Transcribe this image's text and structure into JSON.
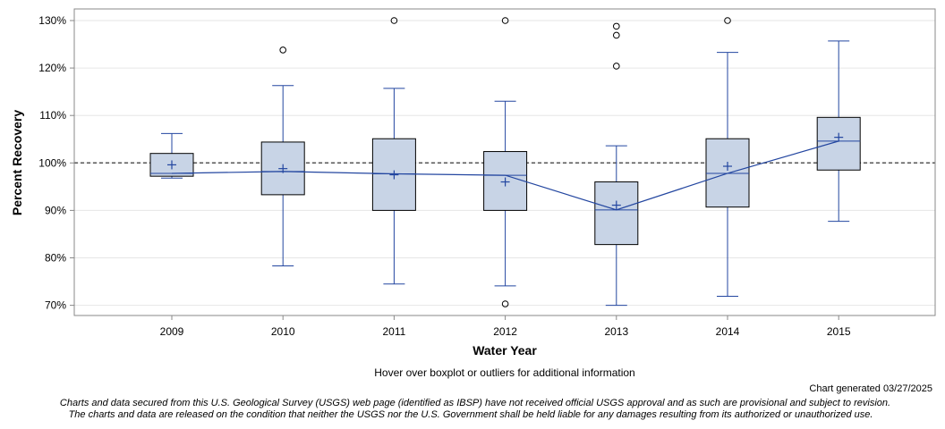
{
  "chart_data": {
    "type": "boxplot",
    "title": "",
    "xlabel": "Water Year",
    "ylabel": "Percent Recovery",
    "ylim": [
      67.5,
      132
    ],
    "ytick_values": [
      70,
      80,
      90,
      100,
      110,
      120,
      130
    ],
    "ytick_labels": [
      "70%",
      "80%",
      "90%",
      "100%",
      "110%",
      "120%",
      "130%"
    ],
    "reference_line": 100,
    "grid": true,
    "categories": [
      "2009",
      "2010",
      "2011",
      "2012",
      "2013",
      "2014",
      "2015"
    ],
    "boxes": [
      {
        "category": "2009",
        "whisker_low": 96.8,
        "q1": 97.2,
        "median": 97.8,
        "mean": 99.6,
        "q3": 102.0,
        "whisker_high": 106.2,
        "outliers": []
      },
      {
        "category": "2010",
        "whisker_low": 78.3,
        "q1": 93.3,
        "median": 98.2,
        "mean": 98.8,
        "q3": 104.4,
        "whisker_high": 116.3,
        "outliers": [
          123.8
        ]
      },
      {
        "category": "2011",
        "whisker_low": 74.5,
        "q1": 90.0,
        "median": 97.7,
        "mean": 97.5,
        "q3": 105.1,
        "whisker_high": 115.7,
        "outliers": [
          130.0
        ]
      },
      {
        "category": "2012",
        "whisker_low": 74.1,
        "q1": 90.0,
        "median": 97.4,
        "mean": 96.0,
        "q3": 102.4,
        "whisker_high": 113.0,
        "outliers": [
          130.0,
          70.3
        ]
      },
      {
        "category": "2013",
        "whisker_low": 70.0,
        "q1": 82.8,
        "median": 90.1,
        "mean": 91.1,
        "q3": 96.0,
        "whisker_high": 103.6,
        "outliers": [
          128.8,
          126.9,
          120.4
        ]
      },
      {
        "category": "2014",
        "whisker_low": 71.9,
        "q1": 90.7,
        "median": 97.8,
        "mean": 99.3,
        "q3": 105.1,
        "whisker_high": 123.3,
        "outliers": [
          130.0
        ]
      },
      {
        "category": "2015",
        "whisker_low": 87.7,
        "q1": 98.5,
        "median": 104.6,
        "mean": 105.4,
        "q3": 109.6,
        "whisker_high": 125.7,
        "outliers": []
      }
    ],
    "median_line": true
  },
  "hover_note": "Hover over boxplot or outliers for additional information",
  "generated": "Chart generated 03/27/2025",
  "disclaimer_line1": "Charts and data secured from this U.S. Geological Survey (USGS) web page (identified as IBSP) have not received official USGS approval and as such are provisional and subject to revision.",
  "disclaimer_line2": "The charts and data are released on the condition that neither the USGS nor the U.S. Government shall be held liable for any damages resulting from its authorized or unauthorized use.",
  "colors": {
    "box_fill": "#c8d4e6",
    "box_stroke": "#000000",
    "whisker": "#2346a0",
    "grid": "#e6e6e6",
    "reference": "#555555"
  }
}
